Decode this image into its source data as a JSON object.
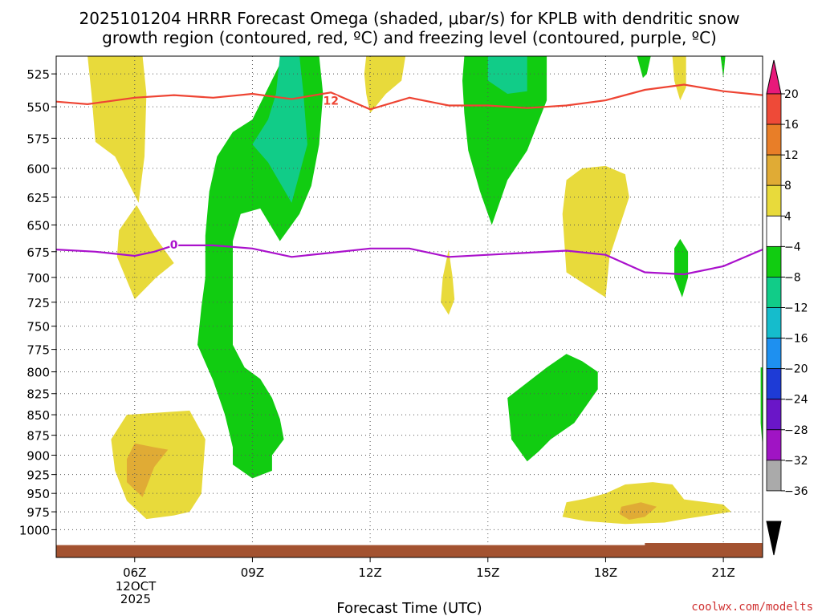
{
  "chart_data": {
    "type": "time-height contour (heatmap)",
    "title_lines": [
      "2025101204 HRRR Forecast Omega (shaded, μbar/s) for KPLB with dendritic snow",
      "growth region (contoured, red, ºC) and freezing level (contoured, purple, ºC)"
    ],
    "xlabel": "Forecast Time (UTC)",
    "credit": "coolwx.com/modelts",
    "x_range_hours": [
      4.0,
      22.0
    ],
    "x_ticks": [
      {
        "hour": 6,
        "label": "06Z"
      },
      {
        "hour": 9,
        "label": "09Z"
      },
      {
        "hour": 12,
        "label": "12Z"
      },
      {
        "hour": 15,
        "label": "15Z"
      },
      {
        "hour": 18,
        "label": "18Z"
      },
      {
        "hour": 21,
        "label": "21Z"
      }
    ],
    "date_label_lines": [
      "12OCT",
      "2025"
    ],
    "y_axis": "pressure (hPa), log scale, inverted",
    "y_range_hpa": [
      512,
      1040
    ],
    "y_ticks": [
      525,
      550,
      575,
      600,
      625,
      650,
      675,
      700,
      725,
      750,
      775,
      800,
      825,
      850,
      875,
      900,
      925,
      950,
      975,
      1000
    ],
    "grid": "dotted",
    "colorbar": {
      "levels": [
        {
          "label": "20",
          "color": "#e8197a"
        },
        {
          "label": "16",
          "color": "#ee4a38"
        },
        {
          "label": "12",
          "color": "#e87e28"
        },
        {
          "label": "8",
          "color": "#e0ab35"
        },
        {
          "label": "4",
          "color": "#e8da3b"
        },
        {
          "label": "−4",
          "color": "#ffffff"
        },
        {
          "label": "−8",
          "color": "#11cc11"
        },
        {
          "label": "−12",
          "color": "#11cc88"
        },
        {
          "label": "−16",
          "color": "#15bccc"
        },
        {
          "label": "−20",
          "color": "#1e90f0"
        },
        {
          "label": "−24",
          "color": "#1e3bd6"
        },
        {
          "label": "−28",
          "color": "#6a16c8"
        },
        {
          "label": "−32",
          "color": "#a014c4"
        },
        {
          "label": "−36",
          "color": "#aaaaaa"
        }
      ],
      "top_arrow_color": "#e8197a",
      "bottom_arrow_color": "#000000"
    },
    "contours": {
      "dendritic": {
        "label": "12",
        "color": "#ee4433",
        "label_point": [
          11.0,
          546
        ],
        "points": [
          [
            4.0,
            546
          ],
          [
            4.8,
            548
          ],
          [
            6.0,
            543
          ],
          [
            7.0,
            541
          ],
          [
            8.0,
            543
          ],
          [
            9.0,
            540
          ],
          [
            10.0,
            544
          ],
          [
            11.0,
            539
          ],
          [
            12.0,
            552
          ],
          [
            13.0,
            543
          ],
          [
            14.0,
            549
          ],
          [
            15.0,
            549
          ],
          [
            16.0,
            551
          ],
          [
            17.0,
            549
          ],
          [
            18.0,
            545
          ],
          [
            19.0,
            537
          ],
          [
            20.0,
            533
          ],
          [
            21.0,
            538
          ],
          [
            22.0,
            541
          ]
        ]
      },
      "freezing": {
        "label": "0",
        "color": "#aa11cc",
        "label_point": [
          7.0,
          669
        ],
        "points": [
          [
            4.0,
            673
          ],
          [
            5.0,
            675
          ],
          [
            6.0,
            679
          ],
          [
            6.5,
            675
          ],
          [
            7.0,
            669
          ],
          [
            8.0,
            669
          ],
          [
            9.0,
            672
          ],
          [
            10.0,
            680
          ],
          [
            11.0,
            676
          ],
          [
            12.0,
            672
          ],
          [
            13.0,
            672
          ],
          [
            14.0,
            680
          ],
          [
            15.0,
            678
          ],
          [
            16.0,
            676
          ],
          [
            17.0,
            674
          ],
          [
            18.0,
            678
          ],
          [
            19.0,
            695
          ],
          [
            20.0,
            697
          ],
          [
            21.0,
            689
          ],
          [
            22.0,
            673
          ]
        ]
      }
    },
    "regions": [
      {
        "name": "yellow-top-left",
        "color": "#e8da3b",
        "points": [
          [
            4.8,
            512
          ],
          [
            6.2,
            512
          ],
          [
            6.3,
            540
          ],
          [
            6.25,
            590
          ],
          [
            6.1,
            630
          ],
          [
            5.5,
            590
          ],
          [
            5.0,
            578
          ],
          [
            4.9,
            540
          ]
        ]
      },
      {
        "name": "yellow-left-diamond",
        "color": "#e8da3b",
        "points": [
          [
            6.05,
            632
          ],
          [
            6.5,
            660
          ],
          [
            7.0,
            686
          ],
          [
            6.55,
            700
          ],
          [
            6.0,
            722
          ],
          [
            5.55,
            680
          ],
          [
            5.6,
            655
          ]
        ]
      },
      {
        "name": "yellow-12z-top",
        "color": "#e8da3b",
        "points": [
          [
            11.9,
            512
          ],
          [
            12.9,
            512
          ],
          [
            12.8,
            530
          ],
          [
            12.4,
            540
          ],
          [
            12.0,
            555
          ],
          [
            11.9,
            540
          ],
          [
            11.85,
            525
          ]
        ]
      },
      {
        "name": "yellow-14z-spike",
        "color": "#e8da3b",
        "points": [
          [
            14.0,
            673
          ],
          [
            14.1,
            700
          ],
          [
            14.15,
            722
          ],
          [
            14.0,
            738
          ],
          [
            13.8,
            725
          ],
          [
            13.85,
            700
          ],
          [
            13.95,
            682
          ]
        ]
      },
      {
        "name": "yellow-18z-blob",
        "color": "#e8da3b",
        "points": [
          [
            17.0,
            610
          ],
          [
            17.4,
            600
          ],
          [
            18.0,
            598
          ],
          [
            18.5,
            605
          ],
          [
            18.6,
            625
          ],
          [
            18.1,
            680
          ],
          [
            18.0,
            720
          ],
          [
            17.4,
            705
          ],
          [
            17.0,
            695
          ],
          [
            16.9,
            640
          ]
        ]
      },
      {
        "name": "yellow-20z-top",
        "color": "#e8da3b",
        "points": [
          [
            19.7,
            512
          ],
          [
            20.05,
            512
          ],
          [
            20.05,
            535
          ],
          [
            19.9,
            545
          ],
          [
            19.75,
            530
          ]
        ]
      },
      {
        "name": "green-top-tiny-19z",
        "color": "#11cc11",
        "points": [
          [
            18.8,
            512
          ],
          [
            19.15,
            512
          ],
          [
            19.05,
            525
          ],
          [
            18.95,
            528
          ]
        ]
      },
      {
        "name": "green-top-tiny-21z",
        "color": "#11cc11",
        "points": [
          [
            20.93,
            512
          ],
          [
            21.05,
            512
          ],
          [
            21.0,
            528
          ]
        ]
      },
      {
        "name": "green-main-09z",
        "color": "#11cc11",
        "points": [
          [
            9.8,
            512
          ],
          [
            10.7,
            512
          ],
          [
            10.8,
            540
          ],
          [
            10.7,
            580
          ],
          [
            10.5,
            615
          ],
          [
            10.2,
            640
          ],
          [
            9.7,
            665
          ],
          [
            9.2,
            635
          ],
          [
            8.7,
            640
          ],
          [
            8.5,
            665
          ],
          [
            8.5,
            700
          ],
          [
            8.5,
            735
          ],
          [
            8.5,
            770
          ],
          [
            8.8,
            795
          ],
          [
            9.2,
            808
          ],
          [
            9.5,
            830
          ],
          [
            9.7,
            855
          ],
          [
            9.8,
            880
          ],
          [
            9.5,
            900
          ],
          [
            9.5,
            920
          ],
          [
            9.0,
            930
          ],
          [
            8.5,
            912
          ],
          [
            8.5,
            890
          ],
          [
            8.3,
            850
          ],
          [
            8.0,
            810
          ],
          [
            7.6,
            770
          ],
          [
            7.7,
            730
          ],
          [
            7.8,
            700
          ],
          [
            7.8,
            660
          ],
          [
            7.9,
            620
          ],
          [
            8.1,
            590
          ],
          [
            8.5,
            570
          ],
          [
            9.0,
            560
          ]
        ]
      },
      {
        "name": "teal-main-10z",
        "color": "#11cc88",
        "points": [
          [
            9.7,
            512
          ],
          [
            10.2,
            512
          ],
          [
            10.3,
            540
          ],
          [
            10.4,
            580
          ],
          [
            10.0,
            630
          ],
          [
            9.4,
            595
          ],
          [
            9.0,
            580
          ],
          [
            9.4,
            560
          ],
          [
            9.6,
            540
          ]
        ]
      },
      {
        "name": "green-15z",
        "color": "#11cc11",
        "points": [
          [
            14.4,
            512
          ],
          [
            16.5,
            512
          ],
          [
            16.5,
            545
          ],
          [
            16.0,
            585
          ],
          [
            15.5,
            610
          ],
          [
            15.1,
            650
          ],
          [
            14.8,
            620
          ],
          [
            14.5,
            585
          ],
          [
            14.4,
            555
          ],
          [
            14.35,
            530
          ]
        ]
      },
      {
        "name": "teal-15z",
        "color": "#11cc88",
        "points": [
          [
            15.0,
            512
          ],
          [
            16.0,
            512
          ],
          [
            16.0,
            538
          ],
          [
            15.5,
            540
          ],
          [
            15.0,
            530
          ]
        ]
      },
      {
        "name": "green-20z-small",
        "color": "#11cc11",
        "points": [
          [
            19.9,
            663
          ],
          [
            20.1,
            675
          ],
          [
            20.1,
            700
          ],
          [
            19.95,
            720
          ],
          [
            19.75,
            700
          ],
          [
            19.75,
            672
          ]
        ]
      },
      {
        "name": "green-16z-lower",
        "color": "#11cc11",
        "points": [
          [
            16.5,
            795
          ],
          [
            17.0,
            780
          ],
          [
            17.4,
            788
          ],
          [
            17.8,
            800
          ],
          [
            17.8,
            820
          ],
          [
            17.2,
            860
          ],
          [
            16.6,
            880
          ],
          [
            16.3,
            895
          ],
          [
            16.0,
            908
          ],
          [
            15.6,
            880
          ],
          [
            15.5,
            830
          ]
        ]
      },
      {
        "name": "green-right-edge",
        "color": "#11cc11",
        "points": [
          [
            21.95,
            795
          ],
          [
            22.0,
            795
          ],
          [
            22.0,
            890
          ],
          [
            21.95,
            860
          ]
        ]
      },
      {
        "name": "yellow-lower-left",
        "color": "#e8da3b",
        "points": [
          [
            5.8,
            850
          ],
          [
            7.4,
            845
          ],
          [
            7.8,
            880
          ],
          [
            7.7,
            950
          ],
          [
            7.4,
            975
          ],
          [
            7.0,
            980
          ],
          [
            6.3,
            985
          ],
          [
            5.8,
            960
          ],
          [
            5.5,
            920
          ],
          [
            5.4,
            880
          ]
        ]
      },
      {
        "name": "orange-lower-left",
        "color": "#e0ab35",
        "points": [
          [
            6.0,
            885
          ],
          [
            6.5,
            890
          ],
          [
            6.85,
            893
          ],
          [
            6.5,
            915
          ],
          [
            6.2,
            955
          ],
          [
            5.8,
            935
          ],
          [
            5.8,
            905
          ]
        ]
      },
      {
        "name": "yellow-lower-right",
        "color": "#e8da3b",
        "points": [
          [
            17.0,
            962
          ],
          [
            17.5,
            957
          ],
          [
            18.0,
            950
          ],
          [
            18.5,
            938
          ],
          [
            19.2,
            935
          ],
          [
            19.7,
            938
          ],
          [
            20.0,
            958
          ],
          [
            21.0,
            965
          ],
          [
            21.2,
            975
          ],
          [
            20.6,
            980
          ],
          [
            20.0,
            985
          ],
          [
            19.5,
            990
          ],
          [
            18.5,
            992
          ],
          [
            17.5,
            988
          ],
          [
            16.9,
            982
          ]
        ]
      },
      {
        "name": "orange-lower-right",
        "color": "#e0ab35",
        "points": [
          [
            18.4,
            968
          ],
          [
            18.9,
            962
          ],
          [
            19.3,
            968
          ],
          [
            19.0,
            982
          ],
          [
            18.6,
            986
          ],
          [
            18.35,
            978
          ]
        ]
      }
    ],
    "surface_bars": [
      {
        "color": "#a35230",
        "from": 4.0,
        "to": 22.0,
        "hpa": 1022
      },
      {
        "color": "#a35230",
        "from": 19.0,
        "to": 22.0,
        "hpa": 1019
      }
    ]
  }
}
